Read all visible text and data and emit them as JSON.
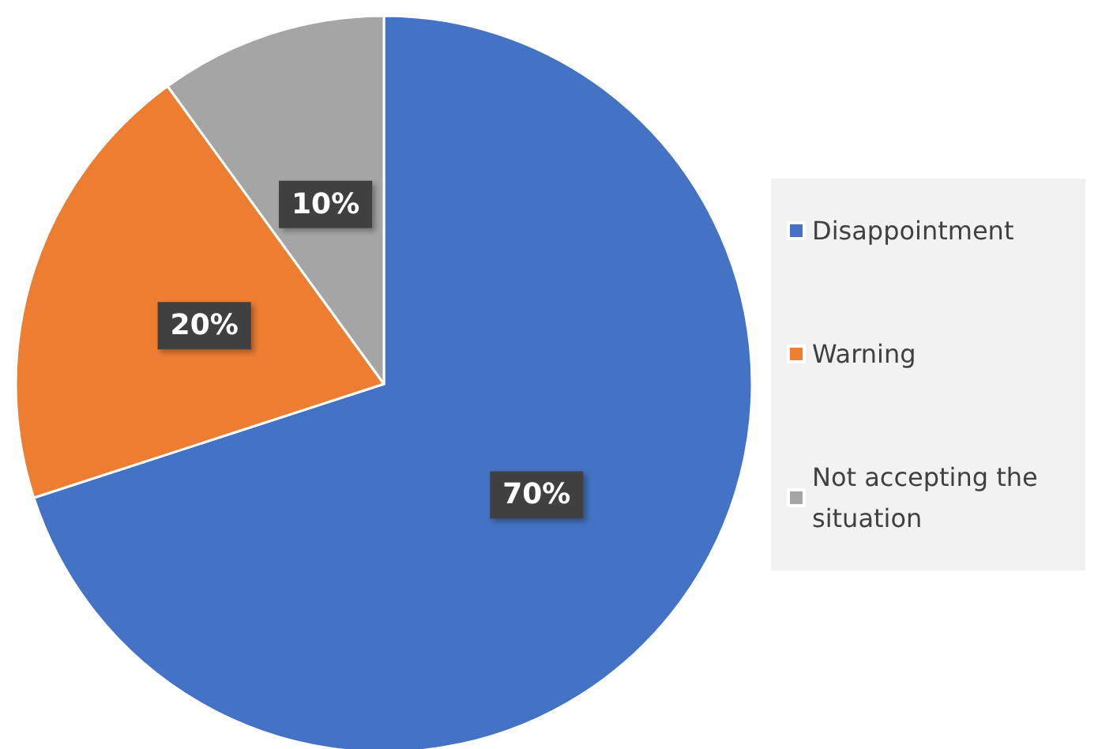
{
  "chart_data": {
    "type": "pie",
    "categories": [
      "Disappointment",
      "Warning",
      "Not accepting the situation"
    ],
    "values": [
      70,
      20,
      10
    ],
    "colors": [
      "#4472c4",
      "#ed7d31",
      "#a5a5a5"
    ],
    "value_labels": [
      "70%",
      "20%",
      "10%"
    ],
    "legend": "right"
  }
}
